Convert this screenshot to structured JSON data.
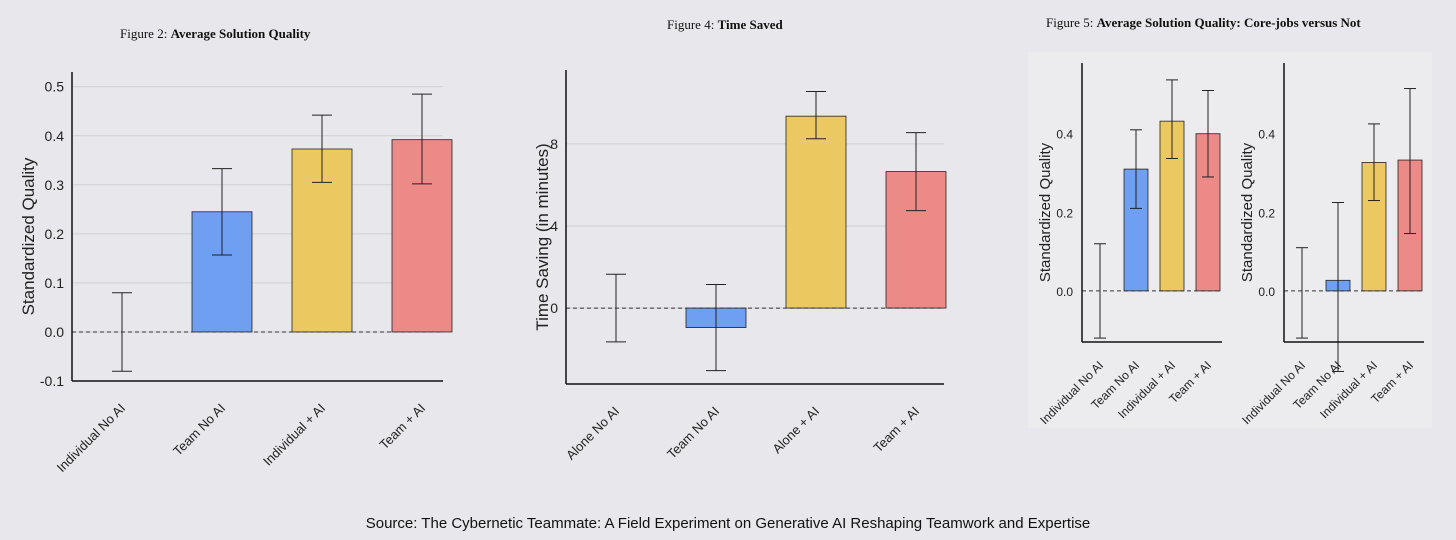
{
  "source": "Source:  The Cybernetic Teammate: A Field Experiment on Generative AI Reshaping Teamwork and Expertise",
  "colors": {
    "blue": "#6e9ff0",
    "yellow": "#ebc960",
    "red": "#ec8a88"
  },
  "chart_data": [
    {
      "id": "fig2",
      "type": "bar",
      "title_prefix": "Figure 2:",
      "title": "Average Solution Quality",
      "ylabel": "Standardized Quality",
      "ylim": [
        -0.1,
        0.53
      ],
      "yticks": [
        -0.1,
        0.0,
        0.1,
        0.2,
        0.3,
        0.4,
        0.5
      ],
      "ytick_labels": [
        "-0.1",
        "0.0",
        "0.1",
        "0.2",
        "0.3",
        "0.4",
        "0.5"
      ],
      "categories": [
        "Individual No AI",
        "Team No AI",
        "Individual + AI",
        "Team + AI"
      ],
      "values": [
        0.0,
        0.245,
        0.373,
        0.392
      ],
      "ci_low": [
        -0.08,
        0.157,
        0.305,
        0.302
      ],
      "ci_high": [
        0.08,
        0.333,
        0.442,
        0.485
      ],
      "bar_colors": [
        "none",
        "blue",
        "yellow",
        "red"
      ],
      "grid": true,
      "zero_line": "dashed"
    },
    {
      "id": "fig4",
      "type": "bar",
      "title_prefix": "Figure 4:",
      "title": "Time Saved",
      "ylabel": "Time Saving (in minutes)",
      "ylim": [
        -3.7,
        11.6
      ],
      "yticks": [
        0,
        4,
        8
      ],
      "ytick_labels": [
        "0",
        "4",
        "8"
      ],
      "categories": [
        "Alone No AI",
        "Team No AI",
        "Alone + AI",
        "Team + AI"
      ],
      "values": [
        0.0,
        -0.95,
        9.35,
        6.65
      ],
      "ci_low": [
        -1.65,
        -3.05,
        8.25,
        4.75
      ],
      "ci_high": [
        1.65,
        1.15,
        10.55,
        8.55
      ],
      "bar_colors": [
        "none",
        "blue",
        "yellow",
        "red"
      ],
      "grid": true,
      "zero_line": "dashed"
    },
    {
      "id": "fig5a",
      "type": "bar",
      "title_prefix": "Figure 5:",
      "title": "Average Solution Quality: Core-jobs versus Not",
      "ylabel": "Standardized Quality",
      "ylim": [
        -0.13,
        0.58
      ],
      "yticks": [
        0.0,
        0.2,
        0.4
      ],
      "ytick_labels": [
        "0.0",
        "0.2",
        "0.4"
      ],
      "categories": [
        "Individual No AI",
        "Team No AI",
        "Individual + AI",
        "Team + AI"
      ],
      "values": [
        0.0,
        0.31,
        0.432,
        0.4
      ],
      "ci_low": [
        -0.12,
        0.21,
        0.337,
        0.29
      ],
      "ci_high": [
        0.12,
        0.41,
        0.537,
        0.51
      ],
      "bar_colors": [
        "none",
        "blue",
        "yellow",
        "red"
      ],
      "zero_line": "dashed"
    },
    {
      "id": "fig5b",
      "type": "bar",
      "ylabel": "Standardized Quality",
      "ylim": [
        -0.13,
        0.58
      ],
      "yticks": [
        0.0,
        0.2,
        0.4
      ],
      "ytick_labels": [
        "0.0",
        "0.2",
        "0.4"
      ],
      "categories": [
        "Individual No AI",
        "Team No AI",
        "Individual + AI",
        "Team + AI"
      ],
      "values": [
        0.0,
        0.027,
        0.327,
        0.333
      ],
      "ci_low": [
        -0.12,
        -0.205,
        0.23,
        0.146
      ],
      "ci_high": [
        0.11,
        0.225,
        0.425,
        0.515
      ],
      "bar_colors": [
        "none",
        "blue",
        "yellow",
        "red"
      ],
      "zero_line": "dashed"
    }
  ]
}
